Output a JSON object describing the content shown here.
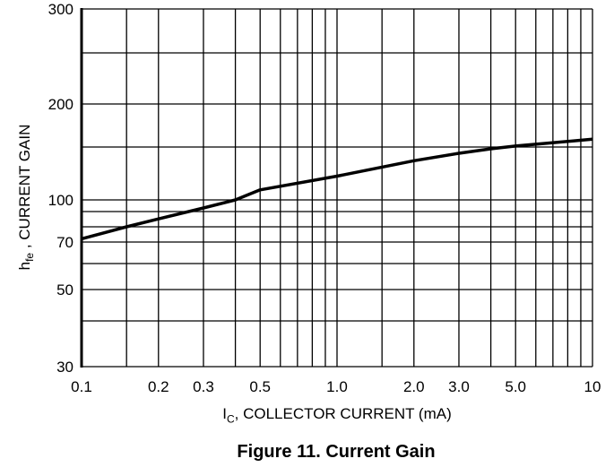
{
  "chart_data": {
    "type": "line",
    "title": "Figure 11. Current Gain",
    "xlabel": {
      "main": "I",
      "sub": "C",
      "rest": ", COLLECTOR CURRENT (mA)"
    },
    "ylabel": {
      "main": "h",
      "sub": "fe",
      "rest": " , CURRENT GAIN"
    },
    "x_scale": "log",
    "y_scale": "log",
    "xlim": [
      0.1,
      10
    ],
    "ylim": [
      30,
      300
    ],
    "grid": true,
    "x_ticks": [
      "0.1",
      "0.2",
      "0.3",
      "0.5",
      "1.0",
      "2.0",
      "3.0",
      "5.0",
      "10"
    ],
    "x_tick_values": [
      0.1,
      0.2,
      0.3,
      0.5,
      1,
      2,
      3,
      5,
      10
    ],
    "y_ticks": [
      "300",
      "200",
      "100",
      "70",
      "50",
      "30"
    ],
    "y_tick_values": [
      300,
      200,
      100,
      70,
      50,
      30
    ],
    "x_grid": [
      0.1,
      0.15,
      0.2,
      0.3,
      0.4,
      0.5,
      0.6,
      0.7,
      0.8,
      0.9,
      1,
      1.5,
      2,
      3,
      4,
      5,
      6,
      7,
      8,
      9,
      10
    ],
    "y_grid": [
      30,
      40,
      50,
      60,
      70,
      80,
      90,
      100,
      150,
      200,
      250,
      300
    ],
    "series": [
      {
        "x": [
          0.1,
          0.15,
          0.2,
          0.3,
          0.4,
          0.5,
          1,
          2,
          3,
          4,
          5,
          10
        ],
        "y": [
          72,
          80,
          85,
          93,
          100,
          108,
          120,
          135,
          143,
          148,
          151,
          158
        ]
      }
    ]
  }
}
